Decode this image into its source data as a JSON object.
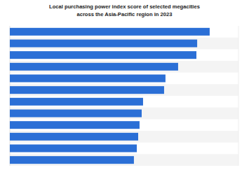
{
  "chart_data": {
    "type": "bar",
    "orientation": "horizontal",
    "title": "Local purchasing power index score of selected megacities across the Asia-Pacific region in 2023",
    "categories": [
      null,
      null,
      null,
      null,
      null,
      null,
      null,
      null,
      null,
      null,
      null,
      null
    ],
    "values": [
      131.1,
      122.9,
      122.4,
      110.4,
      102.1,
      101.2,
      87.4,
      86.5,
      85.1,
      84.2,
      83.3,
      81.4
    ],
    "color": "#2b6fd6",
    "xlim": [
      0,
      150
    ],
    "tick_labels": false
  }
}
